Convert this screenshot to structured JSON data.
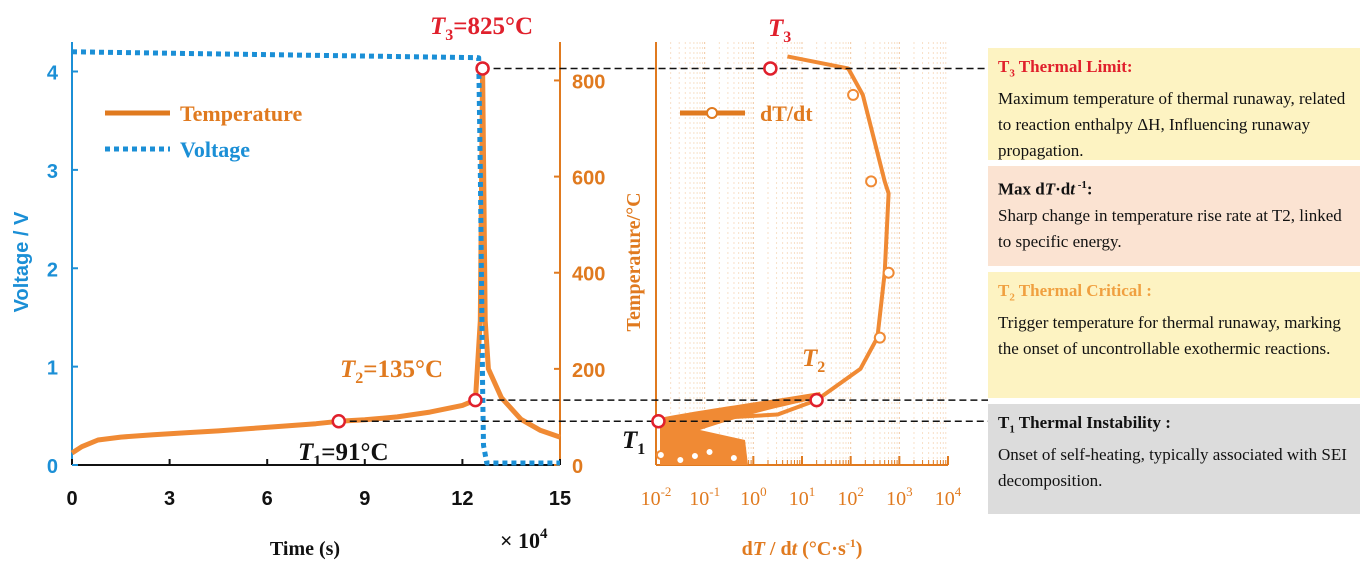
{
  "chart_data": [
    {
      "type": "line",
      "x_axis": {
        "label": "Time (s)",
        "range": [
          0,
          15
        ],
        "ticks": [
          "0",
          "3",
          "6",
          "9",
          "12",
          "15"
        ],
        "multiplier": "× 10",
        "multiplier_exp": "4"
      },
      "y_left_axis": {
        "label": "Voltage / V",
        "range": [
          0,
          4.3
        ],
        "ticks": [
          "0",
          "1",
          "2",
          "3",
          "4"
        ],
        "color": "#1b8fd6"
      },
      "y_right_axis": {
        "label": "Temperature/°C",
        "range": [
          0,
          880
        ],
        "ticks": [
          "0",
          "200",
          "400",
          "600",
          "800"
        ],
        "color": "#e07a1f"
      },
      "series": [
        {
          "name": "Temperature",
          "axis": "right",
          "color": "#f08a34",
          "style": "solid",
          "x": [
            0,
            0.3,
            0.8,
            1.5,
            2.5,
            3.5,
            4.5,
            5.5,
            6.5,
            7.5,
            8.2,
            9,
            10,
            11,
            12,
            12.4,
            12.55,
            12.62,
            12.7,
            12.8,
            13.2,
            13.8,
            14.4,
            15
          ],
          "y": [
            25,
            38,
            52,
            58,
            63,
            67,
            71,
            76,
            81,
            86,
            91,
            94,
            100,
            110,
            124,
            135,
            300,
            825,
            300,
            200,
            140,
            95,
            72,
            58
          ]
        },
        {
          "name": "Voltage",
          "axis": "left",
          "color": "#1b8fd6",
          "style": "dotted",
          "x": [
            0,
            12.5,
            12.55,
            12.6,
            12.62,
            12.65,
            12.75,
            15
          ],
          "y": [
            4.2,
            4.14,
            3.0,
            1.5,
            0.8,
            0.2,
            0.02,
            0.02
          ]
        }
      ],
      "annotations": [
        {
          "id": "t1",
          "label_var": "T",
          "label_sub": "1",
          "label_rest": "=91°C",
          "x": 8.2,
          "y": 91,
          "color": "#111111"
        },
        {
          "id": "t2",
          "label_var": "T",
          "label_sub": "2",
          "label_rest": "=135°C",
          "x": 12.4,
          "y": 135,
          "color": "#e07a1f"
        },
        {
          "id": "t3",
          "label_var": "T",
          "label_sub": "3",
          "label_rest": "=825°C",
          "x": 12.62,
          "y": 825,
          "color": "#e0202c"
        }
      ],
      "legend": {
        "position": "top-left",
        "entries": [
          {
            "label": "Temperature",
            "color": "#e07a1f",
            "style": "solid"
          },
          {
            "label": "Voltage",
            "color": "#1b8fd6",
            "style": "dotted"
          }
        ]
      }
    },
    {
      "type": "line",
      "x_axis": {
        "label_parts": [
          "d",
          "T",
          " / d",
          "t",
          " (°C·s",
          "-1",
          ")"
        ],
        "scale": "log",
        "range_exp": [
          -2,
          4
        ],
        "tick_base": "10",
        "tick_exps": [
          "-2",
          "-1",
          "0",
          "1",
          "2",
          "3",
          "4"
        ]
      },
      "y_axis": {
        "range": [
          0,
          880
        ],
        "shared_with": "Temperature/°C"
      },
      "series": [
        {
          "name": "dT/dt",
          "color": "#f08a34",
          "x_log": [
            -1.95,
            0.5,
            1.3,
            2.2,
            2.55,
            2.7,
            2.78,
            2.7,
            2.25,
            1.95,
            0.7
          ],
          "y": [
            91,
            105,
            135,
            200,
            265,
            400,
            565,
            590,
            770,
            825,
            850
          ],
          "markers_open": [
            [
              1.3,
              135
            ],
            [
              2.6,
              265
            ],
            [
              2.78,
              400
            ],
            [
              2.42,
              590
            ],
            [
              2.05,
              770
            ],
            [
              0.35,
              825
            ]
          ]
        }
      ],
      "annotations": [
        {
          "id": "t1",
          "label_var": "T",
          "label_sub": "1",
          "x_log": -1.95,
          "y": 91,
          "color": "#111111"
        },
        {
          "id": "t2",
          "label_var": "T",
          "label_sub": "2",
          "x_log": 1.3,
          "y": 135,
          "color": "#e07a1f"
        },
        {
          "id": "t3",
          "label_var": "T",
          "label_sub": "3",
          "x_log": 0.35,
          "y": 825,
          "color": "#e0202c"
        }
      ],
      "legend": {
        "position": "top-left",
        "entries": [
          {
            "label": "dT/dt",
            "color": "#e07a1f",
            "style": "solid-marker"
          }
        ]
      }
    }
  ],
  "boxes": [
    {
      "id": "t3",
      "title_var": "T",
      "title_sub": "3",
      "title_rest": " Thermal Limit:",
      "title_color": "#e0202c",
      "bg": "#fdf3c2",
      "body": "Maximum temperature of thermal runaway, related to reaction enthalpy ΔH, Influencing runaway propagation."
    },
    {
      "id": "max",
      "title_a": "Max d",
      "title_var": "T",
      "title_mid": "·d",
      "title_var2": "t",
      "title_sup": " -1",
      "title_rest": ":",
      "title_color": "#111111",
      "bg": "#fbe3d2",
      "body": "Sharp change in temperature rise rate at T2, linked to specific energy."
    },
    {
      "id": "t2",
      "title_var": "T",
      "title_sub": "2",
      "title_rest": " Thermal Critical :",
      "title_color": "#f0a040",
      "bg": "#fdf3c2",
      "body": "Trigger temperature for thermal runaway, marking the onset of uncontrollable exothermic reactions."
    },
    {
      "id": "t1",
      "title_var": "T",
      "title_sub": "1",
      "title_rest": " Thermal Instability :",
      "title_color": "#111111",
      "bg": "#dcdcdc",
      "body": "Onset of self-heating, typically associated with SEI decomposition."
    }
  ]
}
